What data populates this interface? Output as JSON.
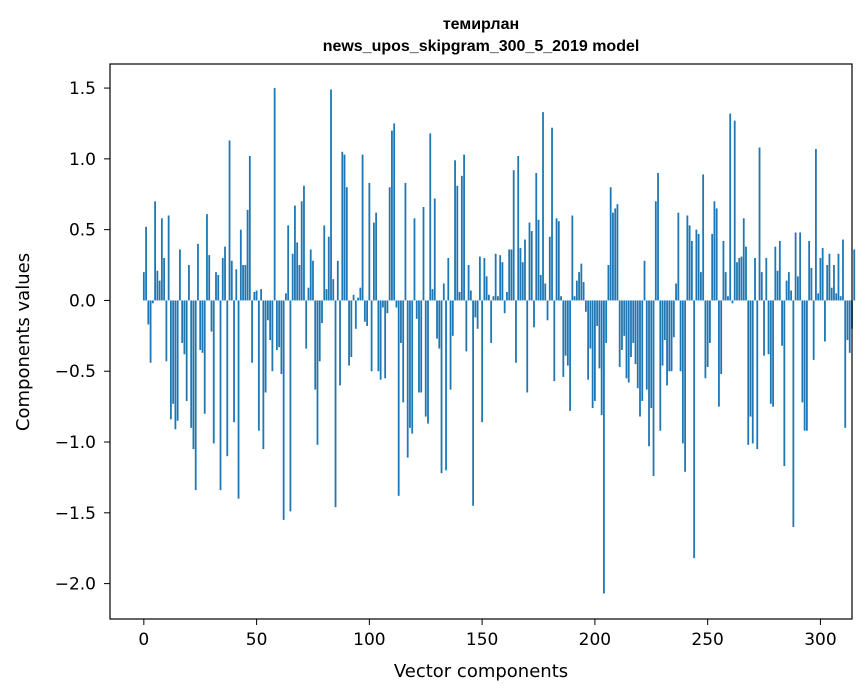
{
  "chart_data": {
    "type": "bar",
    "title_line1": "темирлан",
    "title_line2": "news_upos_skipgram_300_5_2019 model",
    "xlabel": "Vector components",
    "ylabel": "Components values",
    "xlim": [
      -15,
      314
    ],
    "ylim": [
      -2.25,
      1.67
    ],
    "xticks": [
      0,
      50,
      100,
      150,
      200,
      250,
      300
    ],
    "xtick_labels": [
      "0",
      "50",
      "100",
      "150",
      "200",
      "250",
      "300"
    ],
    "yticks": [
      -2.0,
      -1.5,
      -1.0,
      -0.5,
      0.0,
      0.5,
      1.0,
      1.5
    ],
    "ytick_labels": [
      "−2.0",
      "−1.5",
      "−1.0",
      "−0.5",
      "0.0",
      "0.5",
      "1.0",
      "1.5"
    ],
    "bar_color": "#1f77b4",
    "grid": false,
    "values": [
      0.2,
      0.52,
      -0.17,
      -0.44,
      -0.02,
      0.7,
      0.21,
      0.14,
      0.58,
      0.3,
      -0.43,
      0.6,
      -0.84,
      -0.73,
      -0.91,
      -0.85,
      0.36,
      -0.3,
      -0.38,
      -0.71,
      0.25,
      -0.9,
      -1.05,
      -1.34,
      0.4,
      -0.35,
      -0.37,
      -0.8,
      0.61,
      0.32,
      -0.22,
      -1.01,
      0.2,
      0.18,
      -1.34,
      0.3,
      0.38,
      -1.1,
      1.13,
      0.28,
      -0.86,
      0.22,
      -1.4,
      0.5,
      0.25,
      0.25,
      0.64,
      1.02,
      -0.44,
      0.06,
      0.07,
      -0.92,
      0.08,
      -1.05,
      -0.65,
      -0.14,
      -0.28,
      -0.5,
      1.5,
      -0.35,
      -0.33,
      -0.52,
      -1.55,
      0.05,
      0.53,
      -1.49,
      0.33,
      0.67,
      0.41,
      0.25,
      0.7,
      0.81,
      -0.34,
      0.09,
      0.36,
      0.28,
      -0.63,
      -1.02,
      -0.43,
      -0.16,
      0.53,
      0.08,
      0.45,
      1.49,
      0.15,
      -1.46,
      0.28,
      -0.6,
      1.05,
      1.03,
      0.8,
      -0.46,
      -0.4,
      0.04,
      -0.2,
      0.02,
      0.09,
      1.03,
      -0.15,
      -0.18,
      0.83,
      -0.5,
      0.55,
      0.62,
      -0.5,
      -0.56,
      -0.05,
      -0.55,
      -0.09,
      0.8,
      1.2,
      1.25,
      -0.05,
      -1.38,
      -0.3,
      -0.72,
      0.83,
      -1.11,
      -0.9,
      -0.94,
      0.58,
      -0.13,
      -0.65,
      -0.65,
      0.66,
      -0.82,
      -0.87,
      1.18,
      0.08,
      0.72,
      -0.27,
      -0.34,
      -1.22,
      0.12,
      -1.2,
      0.3,
      -0.63,
      -0.25,
      0.99,
      0.81,
      0.06,
      0.88,
      1.03,
      -0.36,
      0.25,
      0.07,
      -1.45,
      -0.12,
      -0.2,
      0.31,
      -0.86,
      0.3,
      0.17,
      0.04,
      -0.3,
      0.03,
      0.33,
      0.03,
      0.32,
      0.27,
      -0.09,
      0.06,
      0.36,
      0.36,
      0.92,
      -0.44,
      1.02,
      0.37,
      0.27,
      0.43,
      -0.65,
      0.55,
      0.49,
      -0.19,
      0.9,
      0.57,
      0.18,
      1.33,
      0.12,
      -0.14,
      0.45,
      1.22,
      -0.57,
      0.58,
      0.56,
      0.03,
      -0.54,
      -0.39,
      -0.46,
      -0.78,
      0.6,
      0.03,
      0.14,
      0.2,
      0.26,
      0.13,
      -0.08,
      -0.56,
      -0.34,
      -0.76,
      -0.71,
      -0.18,
      -0.48,
      -0.81,
      -2.07,
      -0.3,
      0.25,
      0.8,
      0.62,
      0.65,
      0.68,
      -0.47,
      -0.35,
      -0.25,
      -0.55,
      -0.58,
      -0.4,
      -0.3,
      -0.45,
      -0.62,
      -0.82,
      -0.71,
      0.28,
      -0.63,
      -1.03,
      -0.76,
      -1.24,
      0.7,
      0.9,
      -0.92,
      -0.46,
      -0.28,
      -0.6,
      -0.5,
      -0.5,
      -0.26,
      0.12,
      0.62,
      -0.5,
      -1.01,
      -1.21,
      0.6,
      0.53,
      0.42,
      -1.82,
      0.5,
      0.47,
      0.2,
      0.89,
      -0.55,
      -0.47,
      -0.3,
      0.47,
      0.7,
      0.65,
      -0.75,
      -0.52,
      0.42,
      0.2,
      0.03,
      1.32,
      -0.02,
      1.27,
      0.27,
      0.3,
      0.31,
      0.58,
      0.38,
      -1.02,
      -0.82,
      -1.01,
      0.3,
      -1.05,
      1.08,
      0.2,
      -0.39,
      0.3,
      -0.38,
      -0.73,
      -0.75,
      0.38,
      0.21,
      0.42,
      -0.32,
      -1.17,
      0.14,
      0.2,
      0.07,
      -1.6,
      0.48,
      0.17,
      0.48,
      -0.72,
      -0.92,
      -0.92,
      0.42,
      0.23,
      -0.42,
      1.07,
      0.05,
      0.3,
      0.37,
      -0.29,
      0.25,
      0.33,
      0.09,
      0.25,
      0.05,
      0.33,
      0.03,
      0.43,
      -0.9,
      -0.28,
      -0.37,
      -0.2,
      0.36
    ]
  }
}
